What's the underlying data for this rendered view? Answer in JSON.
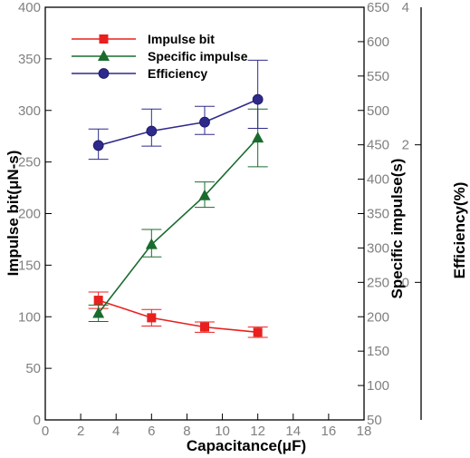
{
  "chart_data": {
    "type": "line",
    "xlabel": "Capacitance(μF)",
    "xlim": [
      0,
      18
    ],
    "xticks": [
      0,
      2,
      4,
      6,
      8,
      10,
      12,
      14,
      16,
      18
    ],
    "axes": {
      "impulse": {
        "label": "Impulse bit(μN-s)",
        "ylim": [
          0,
          400
        ],
        "ticks": [
          0,
          50,
          100,
          150,
          200,
          250,
          300,
          350,
          400
        ]
      },
      "isp": {
        "label": "Specific impulse(s)",
        "ylim": [
          50,
          650
        ],
        "ticks": [
          50,
          100,
          150,
          200,
          250,
          300,
          350,
          400,
          450,
          500,
          550,
          600,
          650
        ]
      },
      "eff": {
        "label": "Efficiency(%)",
        "ylim": [
          -2,
          4
        ],
        "ticks": [
          0,
          2,
          4
        ]
      }
    },
    "series": [
      {
        "name": "Impulse bit",
        "axis": "impulse",
        "color": "#e8201e",
        "marker": "square",
        "x": [
          3,
          6,
          9,
          12
        ],
        "y": [
          116,
          99,
          90,
          85
        ],
        "err_low": [
          8,
          8,
          5,
          5
        ],
        "err_high": [
          8,
          8,
          5,
          5
        ]
      },
      {
        "name": "Specific impulse",
        "axis": "isp",
        "color": "#1a6b2e",
        "marker": "triangle",
        "x": [
          3,
          6,
          9,
          12
        ],
        "y": [
          205,
          305,
          376,
          460
        ],
        "err_low": [
          12,
          18,
          17,
          42
        ],
        "err_high": [
          12,
          22,
          20,
          42
        ]
      },
      {
        "name": "Efficiency",
        "axis": "eff",
        "color": "#2e2a8c",
        "marker": "circle",
        "x": [
          3,
          6,
          9,
          12
        ],
        "y": [
          1.99,
          2.2,
          2.33,
          2.66
        ],
        "err_low": [
          0.2,
          0.22,
          0.18,
          0.42
        ],
        "err_high": [
          0.24,
          0.32,
          0.23,
          0.57
        ]
      }
    ],
    "legend_position": "top-left"
  }
}
